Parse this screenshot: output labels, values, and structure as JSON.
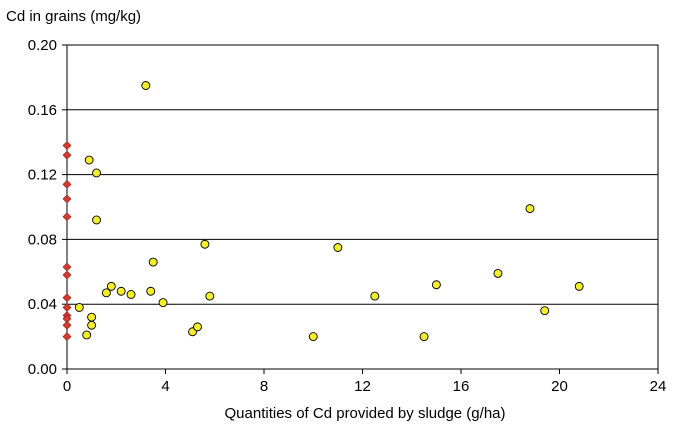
{
  "chart_data": {
    "type": "scatter",
    "title": "",
    "ylabel": "Cd in grains (mg/kg)",
    "xlabel": "Quantities of Cd provided by sludge (g/ha)",
    "xlim": [
      0,
      24
    ],
    "ylim": [
      0.0,
      0.2
    ],
    "x_ticks": [
      "0",
      "4",
      "8",
      "12",
      "16",
      "20",
      "24"
    ],
    "y_ticks": [
      "0.00",
      "0.04",
      "0.08",
      "0.12",
      "0.16",
      "0.20"
    ],
    "grid": "horizontal",
    "series": [
      {
        "marker": "diamond",
        "color": "#d33b32",
        "points": [
          [
            0,
            0.138
          ],
          [
            0,
            0.132
          ],
          [
            0,
            0.114
          ],
          [
            0,
            0.105
          ],
          [
            0,
            0.094
          ],
          [
            0,
            0.063
          ],
          [
            0,
            0.058
          ],
          [
            0,
            0.044
          ],
          [
            0,
            0.038
          ],
          [
            0,
            0.033
          ],
          [
            0,
            0.031
          ],
          [
            0,
            0.027
          ],
          [
            0,
            0.02
          ]
        ]
      },
      {
        "marker": "circle",
        "color": "#f2ee2a",
        "points": [
          [
            0.5,
            0.038
          ],
          [
            0.8,
            0.021
          ],
          [
            0.9,
            0.129
          ],
          [
            1.0,
            0.032
          ],
          [
            1.0,
            0.027
          ],
          [
            1.2,
            0.121
          ],
          [
            1.2,
            0.092
          ],
          [
            1.6,
            0.047
          ],
          [
            1.8,
            0.051
          ],
          [
            2.2,
            0.048
          ],
          [
            2.6,
            0.046
          ],
          [
            3.2,
            0.175
          ],
          [
            3.4,
            0.048
          ],
          [
            3.5,
            0.066
          ],
          [
            3.9,
            0.041
          ],
          [
            5.1,
            0.023
          ],
          [
            5.3,
            0.026
          ],
          [
            5.6,
            0.077
          ],
          [
            5.8,
            0.045
          ],
          [
            10.0,
            0.02
          ],
          [
            11.0,
            0.075
          ],
          [
            12.5,
            0.045
          ],
          [
            14.5,
            0.02
          ],
          [
            15.0,
            0.052
          ],
          [
            17.5,
            0.059
          ],
          [
            18.8,
            0.099
          ],
          [
            19.4,
            0.036
          ],
          [
            20.8,
            0.051
          ]
        ]
      }
    ]
  }
}
